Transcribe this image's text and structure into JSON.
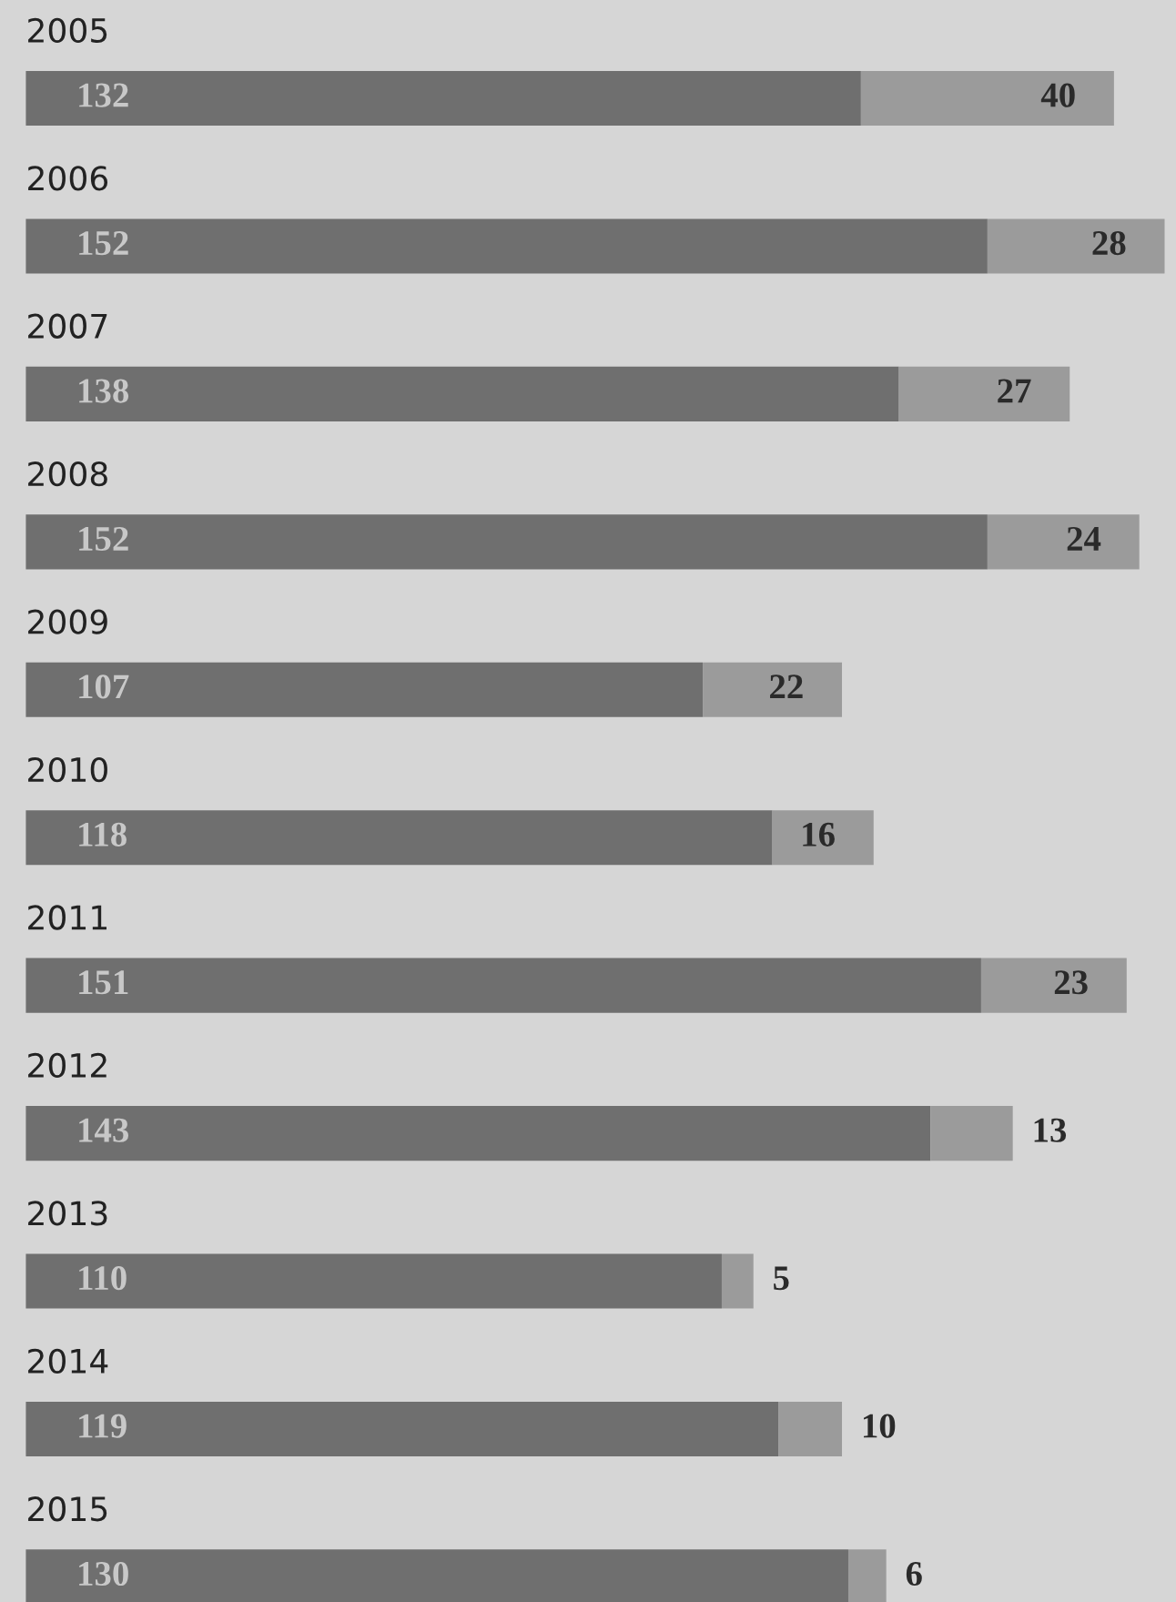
{
  "chart_data": {
    "type": "bar",
    "orientation": "horizontal",
    "stacked": true,
    "data_labels": true,
    "categories": [
      "2005",
      "2006",
      "2007",
      "2008",
      "2009",
      "2010",
      "2011",
      "2012",
      "2013",
      "2014",
      "2015"
    ],
    "series": [
      {
        "color": "#6f6f6f",
        "values": [
          132,
          152,
          138,
          152,
          107,
          118,
          151,
          143,
          110,
          119,
          130
        ]
      },
      {
        "color": "#9b9b9b",
        "values": [
          40,
          28,
          27,
          24,
          22,
          16,
          23,
          13,
          5,
          10,
          6
        ]
      }
    ]
  }
}
